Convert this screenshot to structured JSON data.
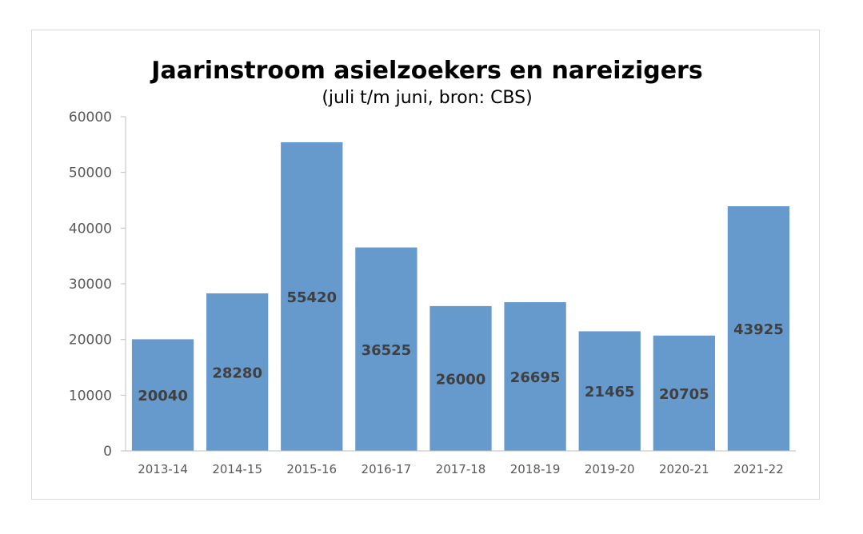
{
  "chart_data": {
    "type": "bar",
    "title": "Jaarinstroom asielzoekers en nareizigers",
    "subtitle": "(juli t/m juni, bron: CBS)",
    "categories": [
      "2013-14",
      "2014-15",
      "2015-16",
      "2016-17",
      "2017-18",
      "2018-19",
      "2019-20",
      "2020-21",
      "2021-22"
    ],
    "values": [
      20040,
      28280,
      55420,
      36525,
      26000,
      26695,
      21465,
      20705,
      43925
    ],
    "data_labels": [
      "20040",
      "28280",
      "55420",
      "36525",
      "26000",
      "26695",
      "21465",
      "20705",
      "43925"
    ],
    "ylim": [
      0,
      60000
    ],
    "yticks": [
      0,
      10000,
      20000,
      30000,
      40000,
      50000,
      60000
    ],
    "ytick_labels": [
      "0",
      "10000",
      "20000",
      "30000",
      "40000",
      "50000",
      "60000"
    ],
    "xlabel": "",
    "ylabel": "",
    "grid": false,
    "legend": "none",
    "bar_color": "#6699cc"
  }
}
